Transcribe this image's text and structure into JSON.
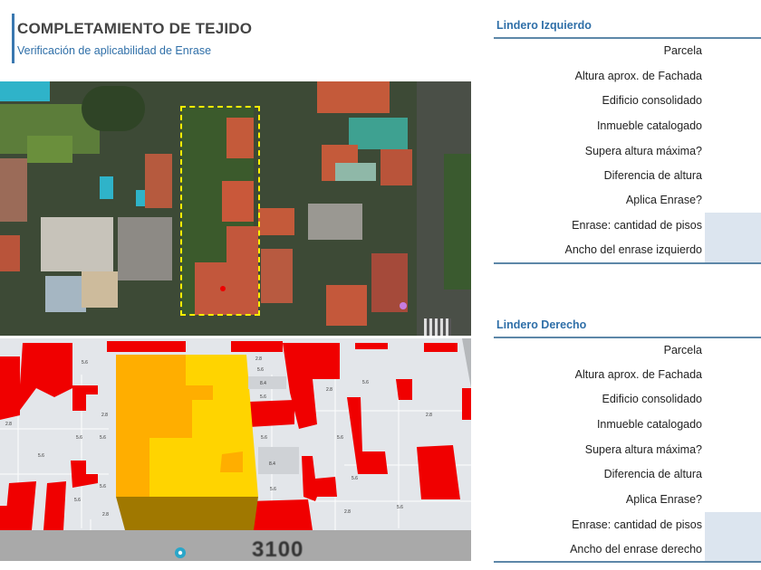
{
  "header": {
    "title": "COMPLETAMIENTO DE TEJIDO",
    "subtitle": "Verificación de aplicabilidad de Enrase"
  },
  "map": {
    "street_number": "3100",
    "pin_icon": "location-pin-icon",
    "height_labels": [
      "5.6",
      "2.8",
      "5.6",
      "8.4",
      "5.6",
      "2.8",
      "5.6",
      "5.6",
      "5.6",
      "2.8",
      "5.6",
      "2.8",
      "5.6",
      "2.8",
      "5.6",
      "8.4",
      "5.6",
      "5.6",
      "2.8",
      "5.6",
      "5.6",
      "2.8",
      "5.6"
    ],
    "colors": {
      "red": "#f00000",
      "orange": "#ffae00",
      "yellow": "#ffd400",
      "parcel": "#e3e6ea",
      "road": "#a9a9a9"
    }
  },
  "left_lindero": {
    "title": "Lindero Izquierdo",
    "rows": [
      "Parcela",
      "Altura aprox. de Fachada",
      "Edificio consolidado",
      "Inmueble catalogado",
      "Supera altura máxima?",
      "Diferencia de altura",
      "Aplica Enrase?",
      "Enrase: cantidad de pisos",
      "Ancho del enrase izquierdo"
    ]
  },
  "right_lindero": {
    "title": "Lindero Derecho",
    "rows": [
      "Parcela",
      "Altura aprox. de Fachada",
      "Edificio consolidado",
      "Inmueble catalogado",
      "Supera altura máxima?",
      "Diferencia de altura",
      "Aplica Enrase?",
      "Enrase: cantidad de pisos",
      "Ancho del enrase derecho"
    ]
  },
  "colors": {
    "accent": "#2f6fa8",
    "shaded_cell": "#dce5ef"
  }
}
